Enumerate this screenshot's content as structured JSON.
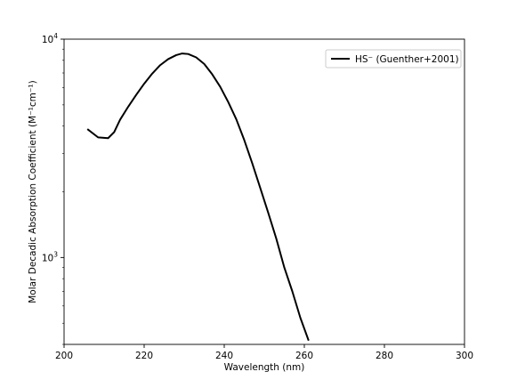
{
  "chart_data": {
    "type": "line",
    "title": "",
    "xlabel": "Wavelength (nm)",
    "ylabel": "Molar Decadic Absorption Coefficient (M⁻¹cm⁻¹)",
    "xlim": [
      200,
      300
    ],
    "ylim": [
      400,
      10000
    ],
    "yscale": "log",
    "grid": false,
    "legend_position": "top-right",
    "x_ticks": [
      200,
      220,
      240,
      260,
      280,
      300
    ],
    "x_tick_labels": [
      "200",
      "220",
      "240",
      "260",
      "280",
      "300"
    ],
    "y_ticks": [
      1000,
      10000
    ],
    "y_tick_labels": [
      {
        "base": "10",
        "exp": "3"
      },
      {
        "base": "10",
        "exp": "4"
      }
    ],
    "series": [
      {
        "name": "HS⁻ (Guenther+2001)",
        "color": "#000000",
        "x": [
          206,
          208.5,
          211,
          212.5,
          214,
          216,
          218,
          220,
          222,
          224,
          226,
          228,
          229.5,
          231,
          233,
          235,
          237,
          239,
          241,
          243,
          245,
          247,
          249,
          251,
          253,
          255,
          257,
          259,
          261
        ],
        "y": [
          3850,
          3550,
          3520,
          3750,
          4280,
          4900,
          5550,
          6250,
          6950,
          7600,
          8100,
          8450,
          8600,
          8550,
          8250,
          7700,
          6900,
          6050,
          5150,
          4300,
          3450,
          2700,
          2080,
          1600,
          1220,
          900,
          700,
          530,
          420
        ]
      }
    ]
  }
}
